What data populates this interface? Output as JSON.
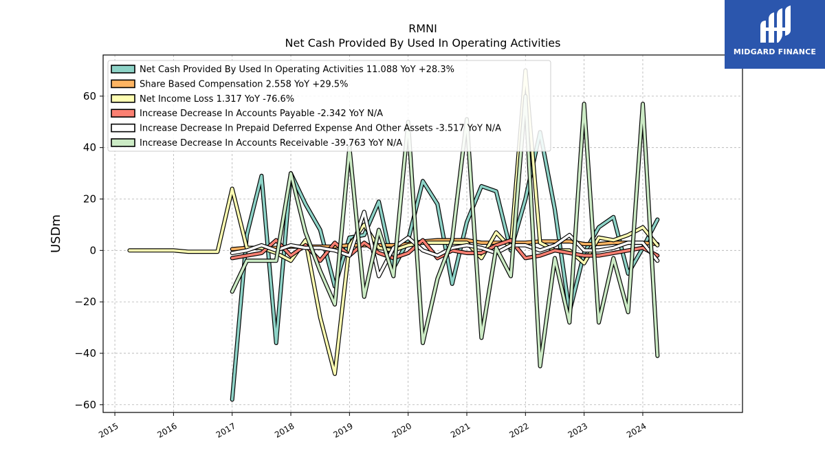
{
  "brand": {
    "name": "MIDGARD FINANCE",
    "color": "#2b56ad",
    "icon": "midgard-logo-icon"
  },
  "chart_data": {
    "type": "line",
    "title": "RMNI",
    "subtitle": "Net Cash Provided By Used In Operating Activities",
    "xlabel": "",
    "ylabel": "USDm",
    "xlim": [
      2014.8,
      2025.7
    ],
    "ylim": [
      -63,
      76
    ],
    "xticks": [
      2015,
      2016,
      2017,
      2018,
      2019,
      2020,
      2021,
      2022,
      2023,
      2024
    ],
    "yticks": [
      -60,
      -40,
      -20,
      0,
      20,
      40,
      60
    ],
    "ytick_labels": [
      "−60",
      "−40",
      "−20",
      "0",
      "20",
      "40",
      "60"
    ],
    "grid": true,
    "legend_position": "top-left",
    "series": [
      {
        "name": "Net Cash Provided By Used In Operating Activities",
        "legend": "Net Cash Provided By Used In Operating Activities  11.088 YoY +28.3%",
        "color": "#8dd3c7",
        "x": [
          2017.0,
          2017.25,
          2017.5,
          2017.75,
          2018.0,
          2018.25,
          2018.5,
          2018.75,
          2019.0,
          2019.25,
          2019.5,
          2019.75,
          2020.0,
          2020.25,
          2020.5,
          2020.75,
          2021.0,
          2021.25,
          2021.5,
          2021.75,
          2022.0,
          2022.25,
          2022.5,
          2022.75,
          2023.0,
          2023.25,
          2023.5,
          2023.75,
          2024.0,
          2024.25
        ],
        "y": [
          -58,
          6,
          29,
          -36,
          30,
          18,
          8,
          -14,
          5,
          6,
          19,
          -7,
          4,
          27,
          18,
          -13,
          11,
          25,
          23,
          0,
          20,
          46,
          16,
          -24,
          -1,
          9,
          13,
          -9,
          1,
          12
        ]
      },
      {
        "name": "Share Based Compensation",
        "legend": "Share Based Compensation  2.558 YoY +29.5%",
        "color": "#fdb462",
        "x": [
          2017.0,
          2017.25,
          2017.5,
          2017.75,
          2018.0,
          2018.25,
          2018.5,
          2018.75,
          2019.0,
          2019.25,
          2019.5,
          2019.75,
          2020.0,
          2020.25,
          2020.5,
          2020.75,
          2021.0,
          2021.25,
          2021.5,
          2021.75,
          2022.0,
          2022.25,
          2022.5,
          2022.75,
          2023.0,
          2023.25,
          2023.5,
          2023.75,
          2024.0,
          2024.25
        ],
        "y": [
          0.5,
          1,
          1,
          1,
          1.5,
          1.5,
          1.5,
          1.5,
          2,
          2,
          2,
          2,
          2.5,
          3.5,
          4,
          4,
          4,
          3,
          3,
          3,
          3,
          3.5,
          3.5,
          3.5,
          2.5,
          2.5,
          3,
          3,
          3,
          2.5
        ]
      },
      {
        "name": "Net Income Loss",
        "legend": "Net Income Loss  1.317 YoY -76.6%",
        "color": "#ffffb3",
        "x": [
          2015.25,
          2015.5,
          2015.75,
          2016.0,
          2016.25,
          2016.5,
          2016.75,
          2017.0,
          2017.25,
          2017.5,
          2017.75,
          2018.0,
          2018.25,
          2018.5,
          2018.75,
          2019.0,
          2019.25,
          2019.5,
          2019.75,
          2020.0,
          2020.25,
          2020.5,
          2020.75,
          2021.0,
          2021.25,
          2021.5,
          2021.75,
          2022.0,
          2022.25,
          2022.5,
          2022.75,
          2023.0,
          2023.25,
          2023.5,
          2023.75,
          2024.0,
          2024.25
        ],
        "y": [
          0,
          0,
          0,
          0,
          -0.5,
          -0.5,
          -0.5,
          24,
          1,
          1,
          -1,
          -4,
          4,
          -26,
          -48,
          2,
          10,
          1,
          0,
          2,
          3,
          3,
          3,
          3,
          -3,
          7,
          1,
          70,
          3,
          0,
          0,
          -5,
          5,
          4,
          6,
          9,
          2
        ]
      },
      {
        "name": "Increase Decrease In Accounts Payable",
        "legend": "Increase Decrease In Accounts Payable  -2.342 YoY N/A",
        "color": "#fb8072",
        "x": [
          2017.0,
          2017.25,
          2017.5,
          2017.75,
          2018.0,
          2018.25,
          2018.5,
          2018.75,
          2019.0,
          2019.25,
          2019.5,
          2019.75,
          2020.0,
          2020.25,
          2020.5,
          2020.75,
          2021.0,
          2021.25,
          2021.5,
          2021.75,
          2022.0,
          2022.25,
          2022.5,
          2022.75,
          2023.0,
          2023.25,
          2023.5,
          2023.75,
          2024.0,
          2024.25
        ],
        "y": [
          -3,
          -2,
          -1,
          4,
          -2,
          2,
          -4,
          3,
          -2,
          3,
          -1,
          -3,
          -1,
          4,
          -3,
          0,
          -1,
          -1,
          2,
          4,
          -3,
          -2,
          0,
          -1,
          -2,
          -2,
          -1,
          0,
          1,
          -2
        ]
      },
      {
        "name": "Increase Decrease In Prepaid Deferred Expense And Other Assets",
        "legend": "Increase Decrease In Prepaid Deferred Expense And Other Assets  -3.517 YoY N/A",
        "color": "#ffffff",
        "x": [
          2017.0,
          2017.25,
          2017.5,
          2017.75,
          2018.0,
          2018.25,
          2018.5,
          2018.75,
          2019.0,
          2019.25,
          2019.5,
          2019.75,
          2020.0,
          2020.25,
          2020.5,
          2020.75,
          2021.0,
          2021.25,
          2021.5,
          2021.75,
          2022.0,
          2022.25,
          2022.5,
          2022.75,
          2023.0,
          2023.25,
          2023.5,
          2023.75,
          2024.0,
          2024.25
        ],
        "y": [
          -1,
          0,
          2,
          0,
          2,
          1,
          1,
          0,
          -2,
          15,
          -10,
          1,
          5,
          0,
          -2,
          1,
          2,
          1,
          -1,
          2,
          2,
          0,
          2,
          6,
          0,
          0,
          1,
          3,
          3,
          -4
        ]
      },
      {
        "name": "Increase Decrease In Accounts Receivable",
        "legend": "Increase Decrease In Accounts Receivable  -39.763 YoY N/A",
        "color": "#ccebc5",
        "x": [
          2017.0,
          2017.25,
          2017.5,
          2017.75,
          2018.0,
          2018.25,
          2018.5,
          2018.75,
          2019.0,
          2019.25,
          2019.5,
          2019.75,
          2020.0,
          2020.25,
          2020.5,
          2020.75,
          2021.0,
          2021.25,
          2021.5,
          2021.75,
          2022.0,
          2022.25,
          2022.5,
          2022.75,
          2023.0,
          2023.25,
          2023.5,
          2023.75,
          2024.0,
          2024.25
        ],
        "y": [
          -16,
          -4,
          -4,
          -4,
          30,
          7,
          -8,
          -21,
          40,
          -18,
          8,
          -10,
          50,
          -36,
          -11,
          4,
          51,
          -34,
          1,
          -10,
          60,
          -45,
          -3,
          -28,
          57,
          -28,
          -3,
          -24,
          57,
          -41
        ]
      }
    ]
  }
}
